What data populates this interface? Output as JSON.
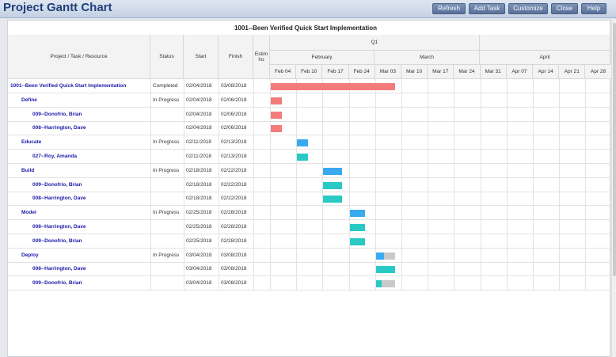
{
  "app": {
    "title": "Project Gantt Chart"
  },
  "toolbar": {
    "buttons": [
      "Refresh",
      "Add Task",
      "Customize",
      "Close",
      "Help"
    ]
  },
  "project_title": "1001--Been Verified Quick Start Implementation",
  "columns": {
    "task": "Project / Task / Resource",
    "status": "Status",
    "start": "Start",
    "finish": "Finish",
    "estimated": "Estim ho"
  },
  "timeline": {
    "quarter": "Q1",
    "months": [
      "February",
      "March",
      "April"
    ],
    "weeks": [
      "Feb 04",
      "Feb 10",
      "Feb 17",
      "Feb 24",
      "Mar 03",
      "Mar 10",
      "Mar 17",
      "Mar 24",
      "Mar 31",
      "Apr 07",
      "Apr 14",
      "Apr 21",
      "Apr 28"
    ]
  },
  "rows": [
    {
      "name": "1001--Been Verified Quick Start Implementation",
      "level": 0,
      "status": "Completed",
      "start": "02/04/2018",
      "finish": "03/08/2018",
      "bar_color": "#f47b7b",
      "progress": 1.0
    },
    {
      "name": "Define",
      "level": 1,
      "status": "In Progress",
      "start": "02/04/2018",
      "finish": "02/06/2018",
      "bar_color": "#f47b7b",
      "progress": 1.0
    },
    {
      "name": "009--Donofrio, Brian",
      "level": 2,
      "status": "",
      "start": "02/04/2018",
      "finish": "02/06/2018",
      "bar_color": "#f47b7b",
      "progress": 1.0
    },
    {
      "name": "008--Harrington, Dave",
      "level": 2,
      "status": "",
      "start": "02/04/2018",
      "finish": "02/06/2018",
      "bar_color": "#f47b7b",
      "progress": 1.0
    },
    {
      "name": "Educate",
      "level": 1,
      "status": "In Progress",
      "start": "02/11/2018",
      "finish": "02/13/2018",
      "bar_color": "#3aaaf0",
      "progress": 1.0
    },
    {
      "name": "027--Roy, Amanda",
      "level": 2,
      "status": "",
      "start": "02/11/2018",
      "finish": "02/13/2018",
      "bar_color": "#29c9c4",
      "progress": 1.0
    },
    {
      "name": "Build",
      "level": 1,
      "status": "In Progress",
      "start": "02/18/2018",
      "finish": "02/22/2018",
      "bar_color": "#3aaaf0",
      "progress": 1.0
    },
    {
      "name": "009--Donofrio, Brian",
      "level": 2,
      "status": "",
      "start": "02/18/2018",
      "finish": "02/22/2018",
      "bar_color": "#29c9c4",
      "progress": 1.0
    },
    {
      "name": "008--Harrington, Dave",
      "level": 2,
      "status": "",
      "start": "02/18/2018",
      "finish": "02/22/2018",
      "bar_color": "#29c9c4",
      "progress": 1.0
    },
    {
      "name": "Model",
      "level": 1,
      "status": "In Progress",
      "start": "02/25/2018",
      "finish": "02/28/2018",
      "bar_color": "#3aaaf0",
      "progress": 1.0
    },
    {
      "name": "008--Harrington, Dave",
      "level": 2,
      "status": "",
      "start": "02/25/2018",
      "finish": "02/28/2018",
      "bar_color": "#29c9c4",
      "progress": 1.0
    },
    {
      "name": "009--Donofrio, Brian",
      "level": 2,
      "status": "",
      "start": "02/25/2018",
      "finish": "02/28/2018",
      "bar_color": "#29c9c4",
      "progress": 1.0
    },
    {
      "name": "Deploy",
      "level": 1,
      "status": "In Progress",
      "start": "03/04/2018",
      "finish": "03/08/2018",
      "bar_color": "#3aaaf0",
      "progress": 0.45
    },
    {
      "name": "008--Harrington, Dave",
      "level": 2,
      "status": "",
      "start": "03/04/2018",
      "finish": "03/08/2018",
      "bar_color": "#29c9c4",
      "progress": 1.0
    },
    {
      "name": "009--Donofrio, Brian",
      "level": 2,
      "status": "",
      "start": "03/04/2018",
      "finish": "03/08/2018",
      "bar_color": "#29c9c4",
      "progress": 0.3
    }
  ],
  "colors": {
    "remaining": "#c9c9c9"
  }
}
